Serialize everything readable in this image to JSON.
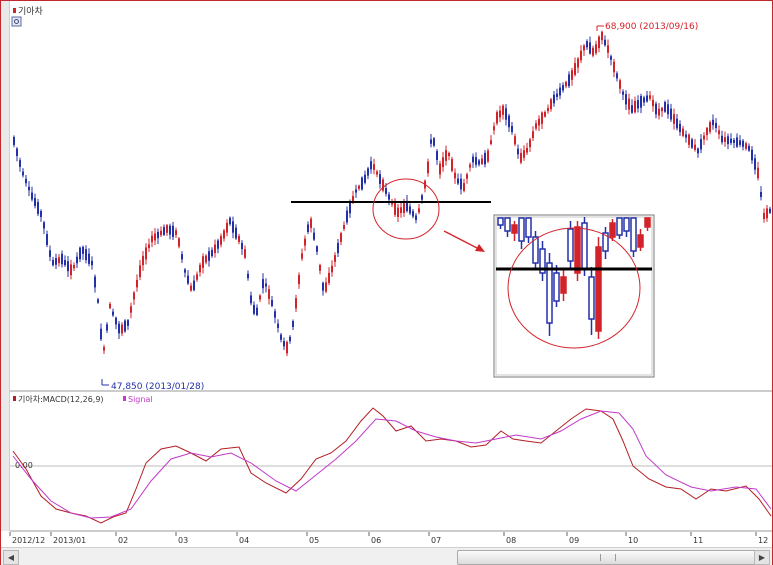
{
  "main_chart": {
    "title": "기아차",
    "high_label": "68,900 (2013/09/16)",
    "low_label": "47,850 (2013/01/28)"
  },
  "indicator": {
    "title": "기아차:MACD(12,26,9)",
    "signal_label": "Signal",
    "zero_label": "0.00"
  },
  "x_axis": {
    "labels": [
      "2012/12",
      "2013/01",
      "02",
      "03",
      "04",
      "05",
      "06",
      "07",
      "08",
      "09",
      "10",
      "11",
      "12"
    ]
  },
  "colors": {
    "up": "#d3232a",
    "down": "#2430a8",
    "macd": "#b21e23",
    "signal": "#c13ac8",
    "annotation": "#d3232a",
    "frame": "#c0282d"
  },
  "icons": {
    "settings": "gear-icon",
    "scroll_left": "arrow-left-icon",
    "scroll_right": "arrow-right-icon"
  }
}
